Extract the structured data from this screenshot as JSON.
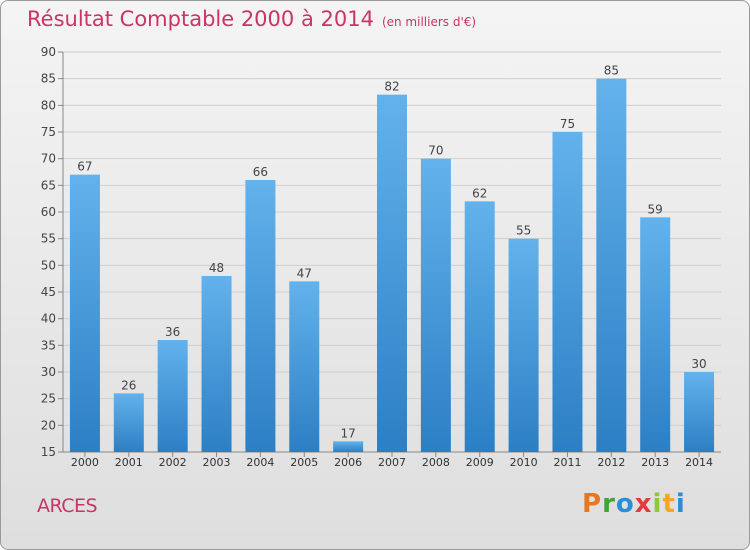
{
  "header": {
    "title": "Résultat Comptable 2000 à 2014",
    "subtitle": "(en milliers d'€)"
  },
  "footer": {
    "town": "ARCES",
    "logo_letters": [
      "P",
      "r",
      "o",
      "x",
      "i",
      "t",
      "i"
    ]
  },
  "colors": {
    "title": "#cc3366",
    "bar": "#3d98de",
    "bar_light": "#63b2ec",
    "bar_dark": "#2c7fc4"
  },
  "chart_data": {
    "type": "bar",
    "title": "Résultat Comptable 2000 à 2014",
    "subtitle": "(en milliers d'€)",
    "xlabel": "",
    "ylabel": "",
    "categories": [
      "2000",
      "2001",
      "2002",
      "2003",
      "2004",
      "2005",
      "2006",
      "2007",
      "2008",
      "2009",
      "2010",
      "2011",
      "2012",
      "2013",
      "2014"
    ],
    "values": [
      67,
      26,
      36,
      48,
      66,
      47,
      17,
      82,
      70,
      62,
      55,
      75,
      85,
      59,
      30
    ],
    "ylim": [
      15,
      90
    ],
    "yticks": [
      15,
      20,
      25,
      30,
      35,
      40,
      45,
      50,
      55,
      60,
      65,
      70,
      75,
      80,
      85,
      90
    ],
    "grid": true,
    "data_labels": true
  }
}
